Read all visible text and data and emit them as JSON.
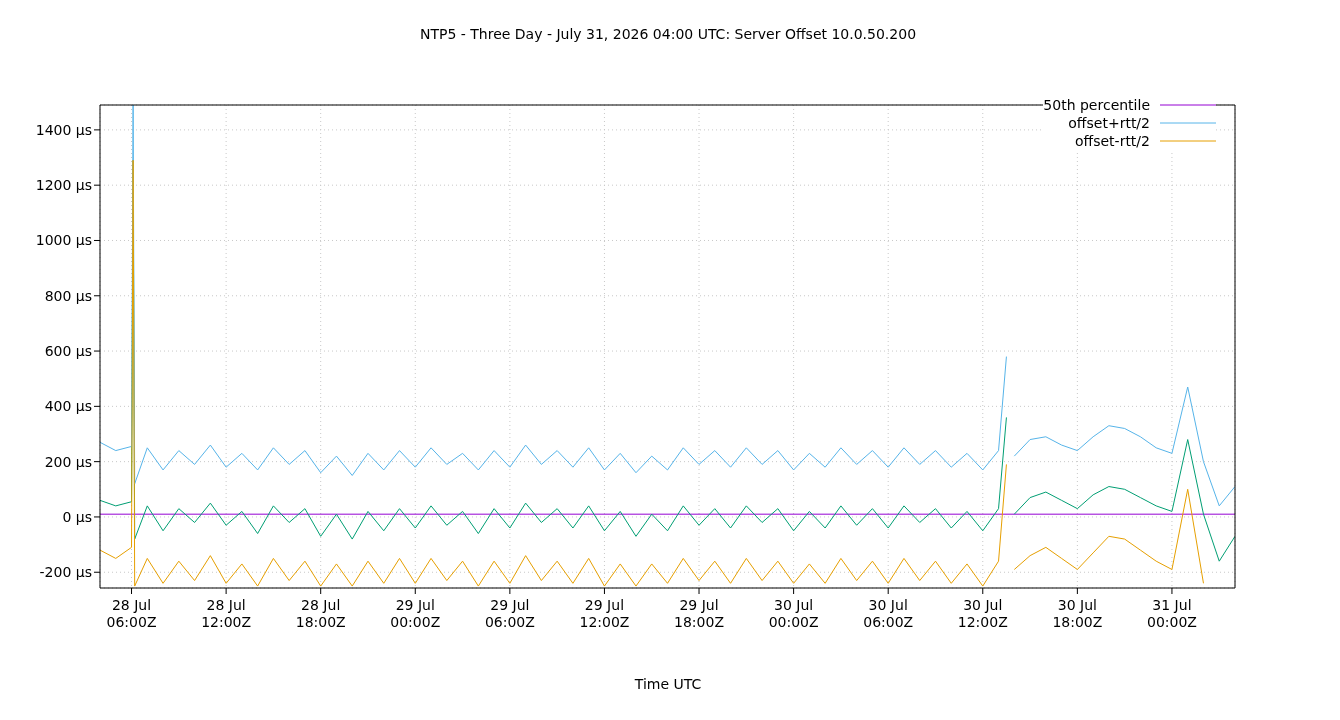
{
  "chart_data": {
    "type": "line",
    "title": "NTP5 - Three Day - July 31, 2026 04:00 UTC: Server Offset 10.0.50.200",
    "xlabel": "Time UTC",
    "x": [
      "2026-07-28T04:00",
      "2026-07-28T05:00",
      "2026-07-28T06:00",
      "2026-07-28T06:06",
      "2026-07-28T06:12",
      "2026-07-28T07:00",
      "2026-07-28T08:00",
      "2026-07-28T09:00",
      "2026-07-28T10:00",
      "2026-07-28T11:00",
      "2026-07-28T12:00",
      "2026-07-28T13:00",
      "2026-07-28T14:00",
      "2026-07-28T15:00",
      "2026-07-28T16:00",
      "2026-07-28T17:00",
      "2026-07-28T18:00",
      "2026-07-28T19:00",
      "2026-07-28T20:00",
      "2026-07-28T21:00",
      "2026-07-28T22:00",
      "2026-07-28T23:00",
      "2026-07-29T00:00",
      "2026-07-29T01:00",
      "2026-07-29T02:00",
      "2026-07-29T03:00",
      "2026-07-29T04:00",
      "2026-07-29T05:00",
      "2026-07-29T06:00",
      "2026-07-29T07:00",
      "2026-07-29T08:00",
      "2026-07-29T09:00",
      "2026-07-29T10:00",
      "2026-07-29T11:00",
      "2026-07-29T12:00",
      "2026-07-29T13:00",
      "2026-07-29T14:00",
      "2026-07-29T15:00",
      "2026-07-29T16:00",
      "2026-07-29T17:00",
      "2026-07-29T18:00",
      "2026-07-29T19:00",
      "2026-07-29T20:00",
      "2026-07-29T21:00",
      "2026-07-29T22:00",
      "2026-07-29T23:00",
      "2026-07-30T00:00",
      "2026-07-30T01:00",
      "2026-07-30T02:00",
      "2026-07-30T03:00",
      "2026-07-30T04:00",
      "2026-07-30T05:00",
      "2026-07-30T06:00",
      "2026-07-30T07:00",
      "2026-07-30T08:00",
      "2026-07-30T09:00",
      "2026-07-30T10:00",
      "2026-07-30T11:00",
      "2026-07-30T12:00",
      "2026-07-30T13:00",
      "2026-07-30T13:30",
      "2026-07-30T13:42",
      "2026-07-30T14:00",
      "2026-07-30T15:00",
      "2026-07-30T16:00",
      "2026-07-30T17:00",
      "2026-07-30T18:00",
      "2026-07-30T19:00",
      "2026-07-30T20:00",
      "2026-07-30T21:00",
      "2026-07-30T22:00",
      "2026-07-30T23:00",
      "2026-07-31T00:00",
      "2026-07-31T01:00",
      "2026-07-31T02:00",
      "2026-07-31T03:00",
      "2026-07-31T04:00"
    ],
    "series": [
      {
        "name": "50th percentile",
        "color": "#9400d3",
        "x": [
          "2026-07-28T04:00",
          "2026-07-31T04:00"
        ],
        "values": [
          10,
          10
        ]
      },
      {
        "color": "#009e73",
        "values": [
          60,
          40,
          55,
          1290,
          -80,
          40,
          -50,
          30,
          -20,
          50,
          -30,
          20,
          -60,
          40,
          -20,
          30,
          -70,
          10,
          -80,
          20,
          -50,
          30,
          -40,
          40,
          -30,
          20,
          -60,
          30,
          -40,
          50,
          -20,
          30,
          -40,
          40,
          -50,
          20,
          -70,
          10,
          -50,
          40,
          -30,
          30,
          -40,
          40,
          -20,
          30,
          -50,
          20,
          -40,
          40,
          -30,
          30,
          -40,
          40,
          -20,
          30,
          -40,
          20,
          -50,
          30,
          360,
          null,
          10,
          70,
          90,
          60,
          30,
          80,
          110,
          100,
          70,
          40,
          20,
          280,
          10,
          -160,
          -70
        ]
      },
      {
        "name": "offset+rtt/2",
        "color": "#56b4e9",
        "values": [
          270,
          240,
          255,
          1490,
          120,
          250,
          170,
          240,
          190,
          260,
          180,
          230,
          170,
          250,
          190,
          240,
          160,
          220,
          150,
          230,
          170,
          240,
          180,
          250,
          190,
          230,
          170,
          240,
          180,
          260,
          190,
          240,
          180,
          250,
          170,
          230,
          160,
          220,
          170,
          250,
          190,
          240,
          180,
          250,
          190,
          240,
          170,
          230,
          180,
          250,
          190,
          240,
          180,
          250,
          190,
          240,
          180,
          230,
          170,
          240,
          580,
          null,
          220,
          280,
          290,
          260,
          240,
          290,
          330,
          320,
          290,
          250,
          230,
          470,
          200,
          40,
          110
        ]
      },
      {
        "name": "offset-rtt/2",
        "color": "#e69f00",
        "values": [
          -120,
          -150,
          -110,
          1290,
          -250,
          -150,
          -240,
          -160,
          -230,
          -140,
          -240,
          -170,
          -250,
          -150,
          -230,
          -160,
          -250,
          -170,
          -250,
          -160,
          -240,
          -150,
          -240,
          -150,
          -230,
          -160,
          -250,
          -160,
          -240,
          -140,
          -230,
          -160,
          -240,
          -150,
          -250,
          -170,
          -250,
          -170,
          -240,
          -150,
          -230,
          -160,
          -240,
          -150,
          -230,
          -160,
          -240,
          -170,
          -240,
          -150,
          -230,
          -160,
          -240,
          -150,
          -230,
          -160,
          -240,
          -170,
          -250,
          -160,
          190,
          null,
          -190,
          -140,
          -110,
          -150,
          -190,
          -130,
          -70,
          -80,
          -120,
          -160,
          -190,
          100,
          -240,
          null,
          null
        ]
      }
    ],
    "xlim": [
      "2026-07-28T04:00",
      "2026-07-31T04:00"
    ],
    "xticks": [
      {
        "value": "2026-07-28T06:00",
        "label": "28 Jul\n06:00Z"
      },
      {
        "value": "2026-07-28T12:00",
        "label": "28 Jul\n12:00Z"
      },
      {
        "value": "2026-07-28T18:00",
        "label": "28 Jul\n18:00Z"
      },
      {
        "value": "2026-07-29T00:00",
        "label": "29 Jul\n00:00Z"
      },
      {
        "value": "2026-07-29T06:00",
        "label": "29 Jul\n06:00Z"
      },
      {
        "value": "2026-07-29T12:00",
        "label": "29 Jul\n12:00Z"
      },
      {
        "value": "2026-07-29T18:00",
        "label": "29 Jul\n18:00Z"
      },
      {
        "value": "2026-07-30T00:00",
        "label": "30 Jul\n00:00Z"
      },
      {
        "value": "2026-07-30T06:00",
        "label": "30 Jul\n06:00Z"
      },
      {
        "value": "2026-07-30T12:00",
        "label": "30 Jul\n12:00Z"
      },
      {
        "value": "2026-07-30T18:00",
        "label": "30 Jul\n18:00Z"
      },
      {
        "value": "2026-07-31T00:00",
        "label": "31 Jul\n00:00Z"
      }
    ],
    "ylim": [
      -257,
      1490
    ],
    "yticks": [
      {
        "value": -200,
        "label": "-200 µs"
      },
      {
        "value": 0,
        "label": "0 µs"
      },
      {
        "value": 200,
        "label": "200 µs"
      },
      {
        "value": 400,
        "label": "400 µs"
      },
      {
        "value": 600,
        "label": "600 µs"
      },
      {
        "value": 800,
        "label": "800 µs"
      },
      {
        "value": 1000,
        "label": "1000 µs"
      },
      {
        "value": 1200,
        "label": "1200 µs"
      },
      {
        "value": 1400,
        "label": "1400 µs"
      }
    ],
    "grid": true,
    "legend": "top right"
  }
}
